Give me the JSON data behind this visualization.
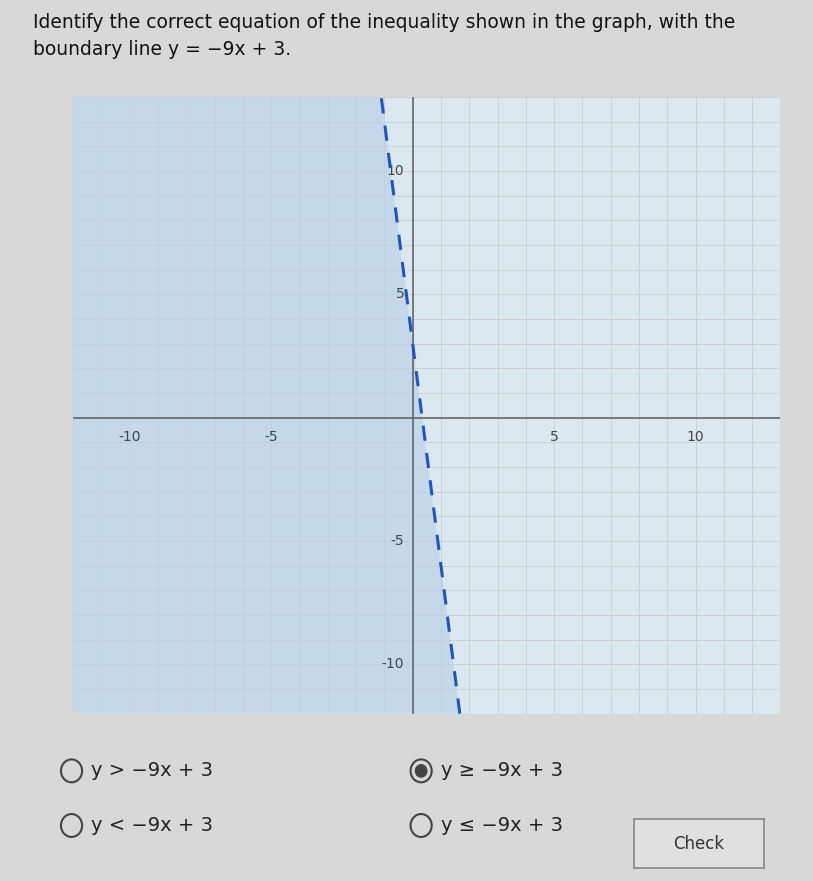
{
  "title_line1": "Identify the correct equation of the inequality shown in the graph, with the",
  "title_line2": "boundary line y = −9x + 3.",
  "title_fontsize": 13.5,
  "graph_xlim": [
    -12,
    13
  ],
  "graph_ylim": [
    -12,
    13
  ],
  "grid_minor_step": 1,
  "xtick_labels": [
    -10,
    -5,
    5,
    10
  ],
  "ytick_labels": [
    -10,
    -5,
    5,
    10
  ],
  "boundary_slope": -9,
  "boundary_intercept": 3,
  "line_color": "#2255bb",
  "line_width": 2.2,
  "shade_color": "#b8d0e8",
  "shade_alpha": 0.65,
  "grid_color": "#bbbbbb",
  "grid_alpha": 0.7,
  "axis_color": "#666666",
  "graph_bg": "#dce8f0",
  "fig_bg": "#d8d8d8",
  "options": [
    {
      "label": "y > −9x + 3",
      "selected": false,
      "row": 0,
      "col": 0
    },
    {
      "label": "y ≥ −9x + 3",
      "selected": true,
      "row": 0,
      "col": 1
    },
    {
      "label": "y < −9x + 3",
      "selected": false,
      "row": 1,
      "col": 0
    },
    {
      "label": "y ≤ −9x + 3",
      "selected": false,
      "row": 1,
      "col": 1
    }
  ],
  "check_button_label": "Check",
  "options_fontsize": 14,
  "radio_color": "#444444"
}
